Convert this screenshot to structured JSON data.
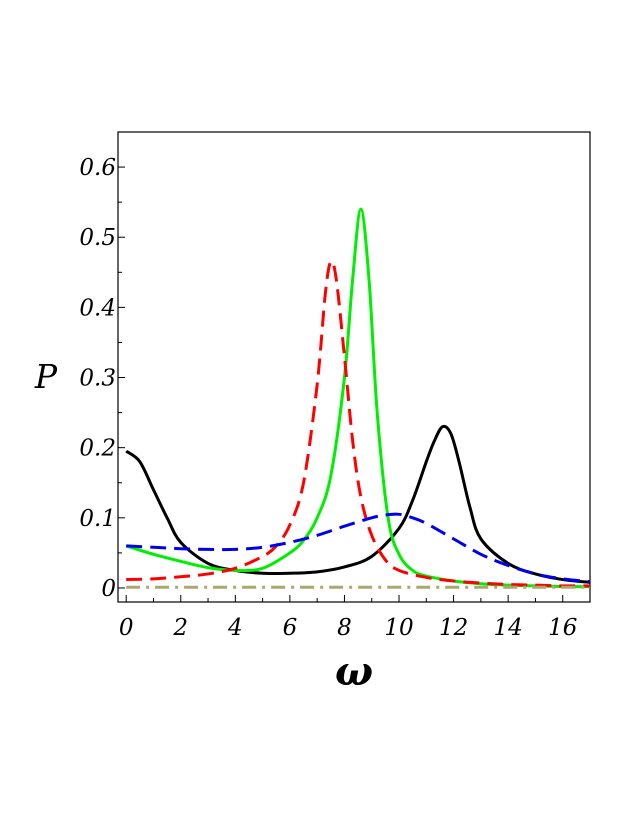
{
  "chart_data": {
    "type": "line",
    "title": "",
    "xlabel": "ω",
    "ylabel": "P",
    "xlim": [
      -0.3,
      17.0
    ],
    "ylim": [
      -0.02,
      0.65
    ],
    "x_ticks": [
      0,
      2,
      4,
      6,
      8,
      10,
      12,
      14,
      16
    ],
    "x_tick_labels": [
      "0",
      "2",
      "4",
      "6",
      "8",
      "10",
      "12",
      "14",
      "16"
    ],
    "y_ticks": [
      0,
      0.1,
      0.2,
      0.3,
      0.4,
      0.5,
      0.6
    ],
    "y_tick_labels": [
      "0",
      "0.1",
      "0.2",
      "0.3",
      "0.4",
      "0.5",
      "0.6"
    ],
    "grid": false,
    "legend": "none",
    "series": [
      {
        "color": "#000000",
        "style": "solid",
        "x": [
          0,
          0.5,
          1,
          1.5,
          2,
          3,
          4,
          5,
          6,
          7,
          8,
          9,
          10,
          10.5,
          11,
          11.3,
          11.6,
          11.9,
          12.2,
          12.6,
          13,
          14,
          15,
          16,
          17
        ],
        "y": [
          0.195,
          0.18,
          0.14,
          0.1,
          0.065,
          0.035,
          0.025,
          0.021,
          0.021,
          0.023,
          0.03,
          0.045,
          0.085,
          0.125,
          0.18,
          0.21,
          0.23,
          0.22,
          0.18,
          0.115,
          0.07,
          0.035,
          0.02,
          0.012,
          0.008
        ]
      },
      {
        "color": "#00ee00",
        "style": "solid",
        "x": [
          0,
          1,
          2,
          3,
          4,
          5,
          6,
          6.5,
          7,
          7.5,
          8,
          8.3,
          8.6,
          8.9,
          9.2,
          9.6,
          10,
          10.5,
          11,
          12,
          13,
          14,
          15,
          16,
          17
        ],
        "y": [
          0.06,
          0.048,
          0.038,
          0.029,
          0.025,
          0.028,
          0.05,
          0.068,
          0.1,
          0.16,
          0.3,
          0.44,
          0.54,
          0.44,
          0.25,
          0.1,
          0.048,
          0.025,
          0.017,
          0.01,
          0.006,
          0.004,
          0.003,
          0.002,
          0.002
        ]
      },
      {
        "color": "#ff0000",
        "style": "dashed",
        "x": [
          0,
          1,
          2,
          3,
          4,
          5,
          5.5,
          6,
          6.5,
          7,
          7.3,
          7.5,
          7.7,
          8,
          8.3,
          8.6,
          9,
          9.5,
          10,
          11,
          12,
          13,
          14,
          15,
          16,
          17
        ],
        "y": [
          0.012,
          0.013,
          0.016,
          0.02,
          0.028,
          0.045,
          0.06,
          0.09,
          0.15,
          0.29,
          0.42,
          0.465,
          0.44,
          0.33,
          0.21,
          0.13,
          0.075,
          0.04,
          0.025,
          0.015,
          0.01,
          0.007,
          0.005,
          0.004,
          0.003,
          0.003
        ]
      },
      {
        "color": "#0000ee",
        "style": "dashed",
        "x": [
          0,
          1,
          2,
          3,
          4,
          5,
          6,
          7,
          8,
          9,
          9.5,
          10,
          10.5,
          11,
          12,
          13,
          14,
          15,
          16,
          17
        ],
        "y": [
          0.06,
          0.058,
          0.056,
          0.055,
          0.055,
          0.058,
          0.065,
          0.075,
          0.088,
          0.1,
          0.104,
          0.105,
          0.1,
          0.092,
          0.07,
          0.048,
          0.032,
          0.02,
          0.013,
          0.009
        ]
      },
      {
        "color": "#a9a96c",
        "style": "dashdot",
        "x": [
          0,
          17
        ],
        "y": [
          0.001,
          0.001
        ]
      }
    ]
  }
}
